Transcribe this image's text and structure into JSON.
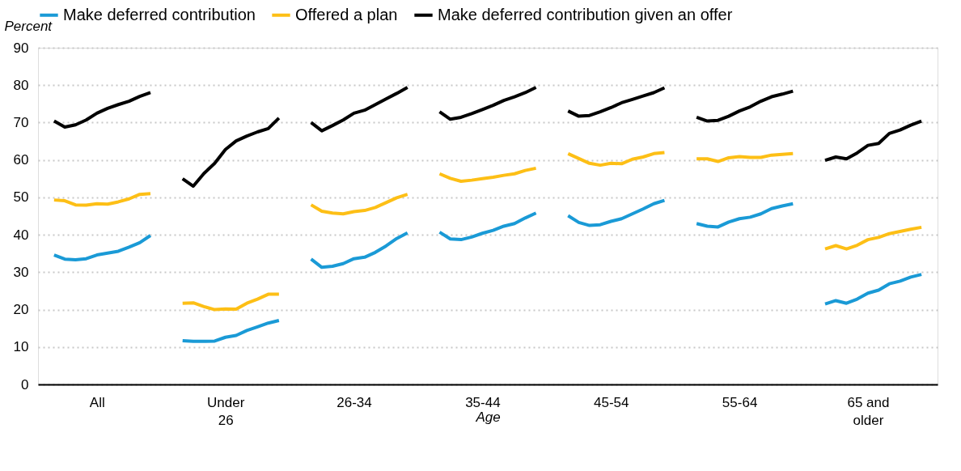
{
  "chart_data": {
    "type": "line",
    "xlabel": "Age",
    "ylabel": "Percent",
    "categories": [
      null,
      null,
      null,
      null,
      null,
      "All",
      null,
      null,
      null,
      null,
      null,
      null,
      null,
      null,
      null,
      null,
      null,
      "Under\n26",
      null,
      null,
      null,
      null,
      null,
      null,
      null,
      null,
      null,
      null,
      null,
      "26-34",
      null,
      null,
      null,
      null,
      null,
      null,
      null,
      null,
      null,
      null,
      null,
      "35-44",
      null,
      null,
      null,
      null,
      null,
      null,
      null,
      null,
      null,
      null,
      null,
      "45-54",
      null,
      null,
      null,
      null,
      null,
      null,
      null,
      null,
      null,
      null,
      null,
      "55-64",
      null,
      null,
      null,
      null,
      null,
      null,
      null,
      null,
      null,
      null,
      null,
      "65 and\nolder",
      null,
      null,
      null,
      null,
      null,
      null
    ],
    "series": [
      {
        "name": "Make deferred contribution",
        "color": "#1a9ad6",
        "values": [
          null,
          34.6,
          33.5,
          33.3,
          33.6,
          34.6,
          35.1,
          35.6,
          36.7,
          37.9,
          39.8,
          null,
          null,
          11.7,
          11.5,
          11.5,
          11.6,
          12.6,
          13.1,
          14.4,
          15.4,
          16.4,
          17.1,
          null,
          null,
          33.5,
          31.3,
          31.6,
          32.3,
          33.6,
          34.0,
          35.3,
          37.0,
          39.0,
          40.5,
          null,
          null,
          40.7,
          38.9,
          38.7,
          39.4,
          40.4,
          41.2,
          42.3,
          43.0,
          44.5,
          45.8,
          null,
          null,
          45.1,
          43.3,
          42.5,
          42.7,
          43.6,
          44.3,
          45.6,
          46.9,
          48.3,
          49.2,
          null,
          null,
          43.0,
          42.3,
          42.1,
          43.4,
          44.3,
          44.7,
          45.6,
          47.0,
          47.7,
          48.3,
          null,
          null,
          21.5,
          22.4,
          21.7,
          22.8,
          24.4,
          25.2,
          26.9,
          27.6,
          28.7,
          29.4,
          null
        ]
      },
      {
        "name": "Offered a plan",
        "color": "#fdbf16",
        "values": [
          null,
          49.3,
          49.1,
          48.0,
          47.9,
          48.3,
          48.2,
          48.8,
          49.6,
          50.8,
          51.0,
          null,
          null,
          21.7,
          21.8,
          20.8,
          20.0,
          20.2,
          20.1,
          21.7,
          22.8,
          24.1,
          24.1,
          null,
          null,
          48.0,
          46.3,
          45.8,
          45.6,
          46.2,
          46.5,
          47.3,
          48.6,
          49.9,
          50.8,
          null,
          null,
          56.3,
          55.1,
          54.3,
          54.6,
          55.0,
          55.4,
          55.9,
          56.3,
          57.2,
          57.8,
          null,
          null,
          61.7,
          60.4,
          59.1,
          58.6,
          59.1,
          59.0,
          60.2,
          60.8,
          61.7,
          62.0,
          null,
          null,
          60.3,
          60.3,
          59.6,
          60.6,
          60.9,
          60.7,
          60.7,
          61.3,
          61.5,
          61.7,
          null,
          null,
          36.2,
          37.1,
          36.2,
          37.2,
          38.7,
          39.3,
          40.3,
          40.9,
          41.5,
          42.0,
          null
        ]
      },
      {
        "name": "Make deferred contribution given an offer",
        "color": "#000000",
        "values": [
          null,
          70.4,
          68.8,
          69.4,
          70.7,
          72.5,
          73.8,
          74.8,
          75.7,
          77.0,
          78.0,
          null,
          null,
          55.0,
          53.0,
          56.4,
          59.1,
          62.8,
          65.1,
          66.4,
          67.5,
          68.4,
          71.2,
          null,
          null,
          70.0,
          67.8,
          69.2,
          70.7,
          72.5,
          73.3,
          74.8,
          76.3,
          77.8,
          79.4,
          null,
          null,
          72.9,
          70.9,
          71.4,
          72.4,
          73.5,
          74.6,
          75.9,
          76.9,
          78.0,
          79.4,
          null,
          null,
          73.1,
          71.7,
          71.9,
          72.9,
          74.0,
          75.3,
          76.2,
          77.1,
          78.0,
          79.3,
          null,
          null,
          71.4,
          70.4,
          70.6,
          71.7,
          73.1,
          74.2,
          75.7,
          76.9,
          77.6,
          78.4,
          null,
          null,
          59.9,
          60.8,
          60.3,
          61.9,
          63.9,
          64.4,
          67.1,
          68.0,
          69.3,
          70.4,
          null
        ]
      }
    ],
    "ylim": [
      0,
      90
    ],
    "yticks": [
      0,
      10,
      20,
      30,
      40,
      50,
      60,
      70,
      80,
      90
    ],
    "grid": "y",
    "legend": "top",
    "marker": "none",
    "line_style": "solid"
  }
}
